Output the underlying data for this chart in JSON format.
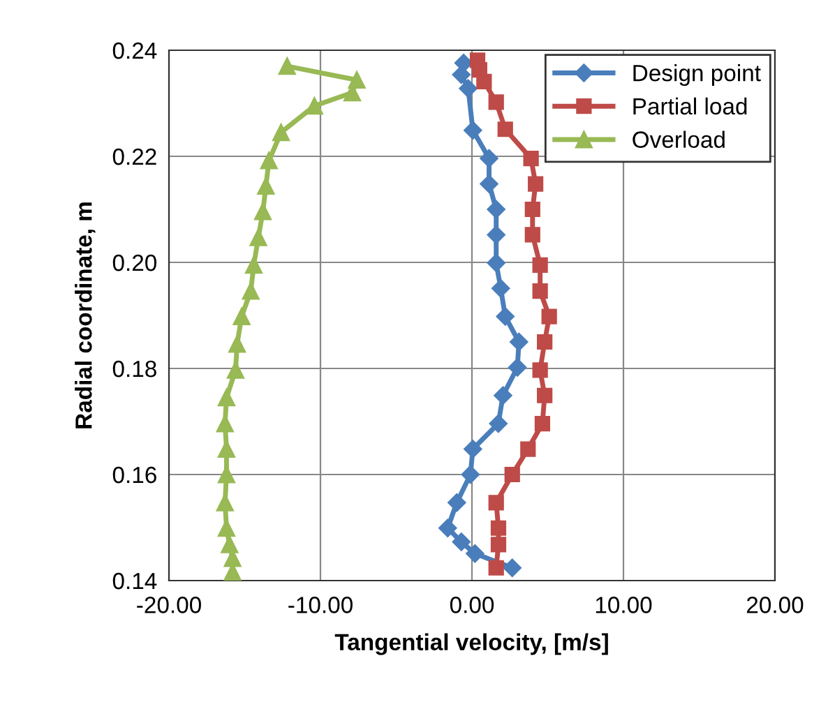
{
  "chart_data": {
    "type": "line",
    "xlabel": "Tangential velocity, [m/s]",
    "ylabel": "Radial coordinate, m",
    "xlim": [
      -20,
      20
    ],
    "xticks": [
      {
        "value": -20,
        "label": "-20.00"
      },
      {
        "value": -10,
        "label": "-10.00"
      },
      {
        "value": 0,
        "label": "0.00"
      },
      {
        "value": 10,
        "label": "10.00"
      },
      {
        "value": 20,
        "label": "20.00"
      }
    ],
    "ylim": [
      0.14,
      0.24
    ],
    "yticks": [
      0.14,
      0.16,
      0.18,
      {
        "value": 0.2,
        "label": "0.20"
      },
      0.22,
      0.24
    ],
    "grid": true,
    "legend": "top right",
    "line_style": "solid",
    "series": [
      {
        "name": "Design point",
        "color": "#4a7ebb",
        "marker": "diamond",
        "x": [
          -0.55,
          -0.7,
          -0.25,
          0.06,
          1.13,
          1.13,
          1.6,
          1.6,
          1.6,
          1.9,
          2.2,
          3.1,
          3.0,
          2.05,
          1.74,
          0.06,
          -0.1,
          -1.0,
          -1.6,
          -0.7,
          0.2,
          2.66
        ],
        "values": [
          0.2376,
          0.2354,
          0.2328,
          0.2249,
          0.2196,
          0.2148,
          0.21,
          0.2052,
          0.1999,
          0.1951,
          0.1898,
          0.185,
          0.1802,
          0.1749,
          0.1696,
          0.1648,
          0.16,
          0.1547,
          0.1499,
          0.1473,
          0.1451,
          0.1424
        ]
      },
      {
        "name": "Partial load",
        "color": "#be4b48",
        "marker": "square",
        "x": [
          0.37,
          0.5,
          0.8,
          1.6,
          2.2,
          3.9,
          4.2,
          4.0,
          4.0,
          4.5,
          4.5,
          5.1,
          4.8,
          4.5,
          4.8,
          4.65,
          3.7,
          2.66,
          1.6,
          1.75,
          1.75,
          1.6
        ],
        "values": [
          0.2381,
          0.2363,
          0.2341,
          0.2302,
          0.2251,
          0.2196,
          0.2148,
          0.21,
          0.2052,
          0.1995,
          0.1946,
          0.1898,
          0.185,
          0.1797,
          0.1749,
          0.1696,
          0.1648,
          0.16,
          0.1547,
          0.1499,
          0.1468,
          0.1424
        ]
      },
      {
        "name": "Overload",
        "color": "#98b954",
        "marker": "triangle",
        "x": [
          -12.2,
          -7.6,
          -7.9,
          -10.4,
          -12.6,
          -13.4,
          -13.6,
          -13.8,
          -14.1,
          -14.4,
          -14.6,
          -15.2,
          -15.5,
          -15.6,
          -16.2,
          -16.3,
          -16.2,
          -16.2,
          -16.3,
          -16.2,
          -16.0,
          -15.8,
          -15.8
        ],
        "values": [
          0.237,
          0.2344,
          0.232,
          0.2295,
          0.2245,
          0.2192,
          0.2144,
          0.2096,
          0.2047,
          0.1995,
          0.1946,
          0.1898,
          0.1846,
          0.1797,
          0.1745,
          0.1696,
          0.1648,
          0.16,
          0.1547,
          0.1499,
          0.1468,
          0.1442,
          0.1416
        ]
      }
    ]
  }
}
